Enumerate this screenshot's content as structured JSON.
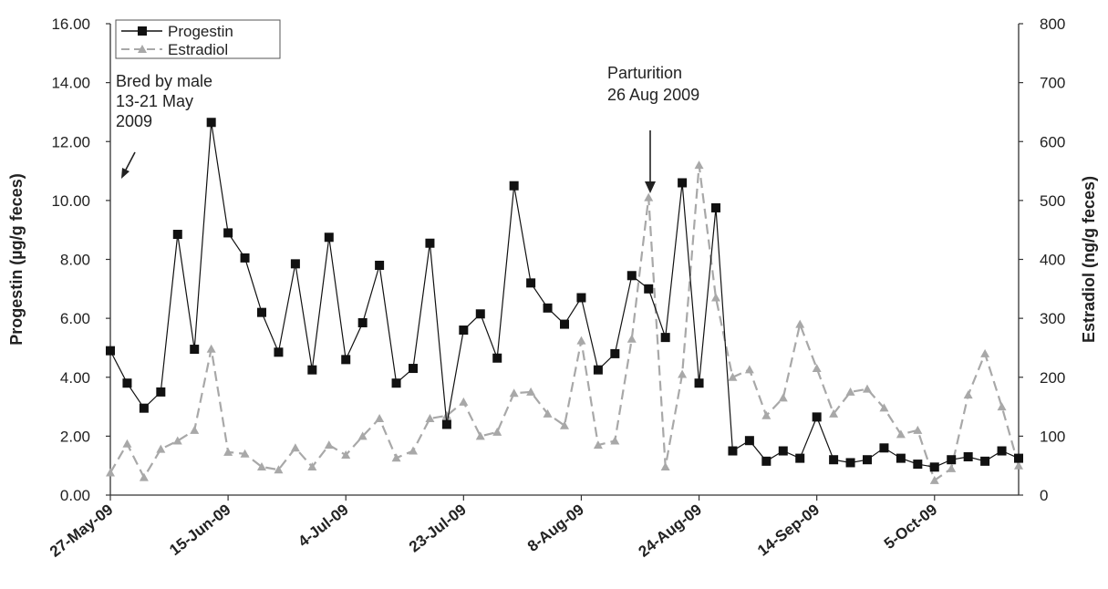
{
  "chart_data": {
    "type": "line",
    "title": "",
    "x_tick_labels": [
      "27-May-09",
      "15-Jun-09",
      "4-Jul-09",
      "23-Jul-09",
      "8-Aug-09",
      "24-Aug-09",
      "14-Sep-09",
      "5-Oct-09"
    ],
    "y_left": {
      "label": "Progestin (µg/g feces)",
      "range": [
        0,
        16
      ],
      "ticks": [
        "0.00",
        "2.00",
        "4.00",
        "6.00",
        "8.00",
        "10.00",
        "12.00",
        "14.00",
        "16.00"
      ]
    },
    "y_right": {
      "label": "Estradiol (ng/g feces)",
      "range": [
        0,
        800
      ],
      "ticks": [
        "0",
        "100",
        "200",
        "300",
        "400",
        "500",
        "600",
        "700",
        "800"
      ]
    },
    "legend_position": "top-left",
    "series": [
      {
        "name": "Progestin",
        "axis": "left",
        "color": "#111111",
        "values": [
          4.9,
          3.8,
          2.95,
          3.5,
          8.85,
          4.95,
          12.65,
          8.9,
          8.05,
          6.2,
          4.85,
          7.85,
          4.25,
          8.75,
          4.6,
          5.85,
          7.8,
          3.8,
          4.3,
          8.55,
          2.4,
          5.6,
          6.15,
          4.65,
          10.5,
          7.2,
          6.35,
          5.8,
          6.7,
          4.25,
          4.8,
          7.45,
          7.0,
          5.35,
          10.6,
          3.8,
          9.75,
          1.5,
          1.85,
          1.15,
          1.5,
          1.25,
          2.65,
          1.2,
          1.1,
          1.2,
          1.6,
          1.25,
          1.05,
          0.95,
          1.2,
          1.3,
          1.15,
          1.5,
          1.25
        ]
      },
      {
        "name": "Estradiol",
        "axis": "right",
        "color": "#a8a8a8",
        "values": [
          38,
          87,
          30,
          78,
          92,
          110,
          248,
          73,
          70,
          48,
          43,
          80,
          48,
          85,
          68,
          100,
          130,
          63,
          75,
          130,
          135,
          158,
          100,
          107,
          173,
          175,
          138,
          118,
          262,
          85,
          92,
          265,
          505,
          48,
          205,
          560,
          335,
          200,
          213,
          135,
          165,
          290,
          215,
          138,
          175,
          180,
          148,
          103,
          110,
          25,
          45,
          170,
          240,
          150,
          50
        ]
      }
    ],
    "annotations": [
      {
        "lines": [
          "Bred by male",
          "13-21 May",
          "2009"
        ]
      },
      {
        "lines": [
          "Parturition",
          "26 Aug 2009"
        ]
      }
    ]
  }
}
